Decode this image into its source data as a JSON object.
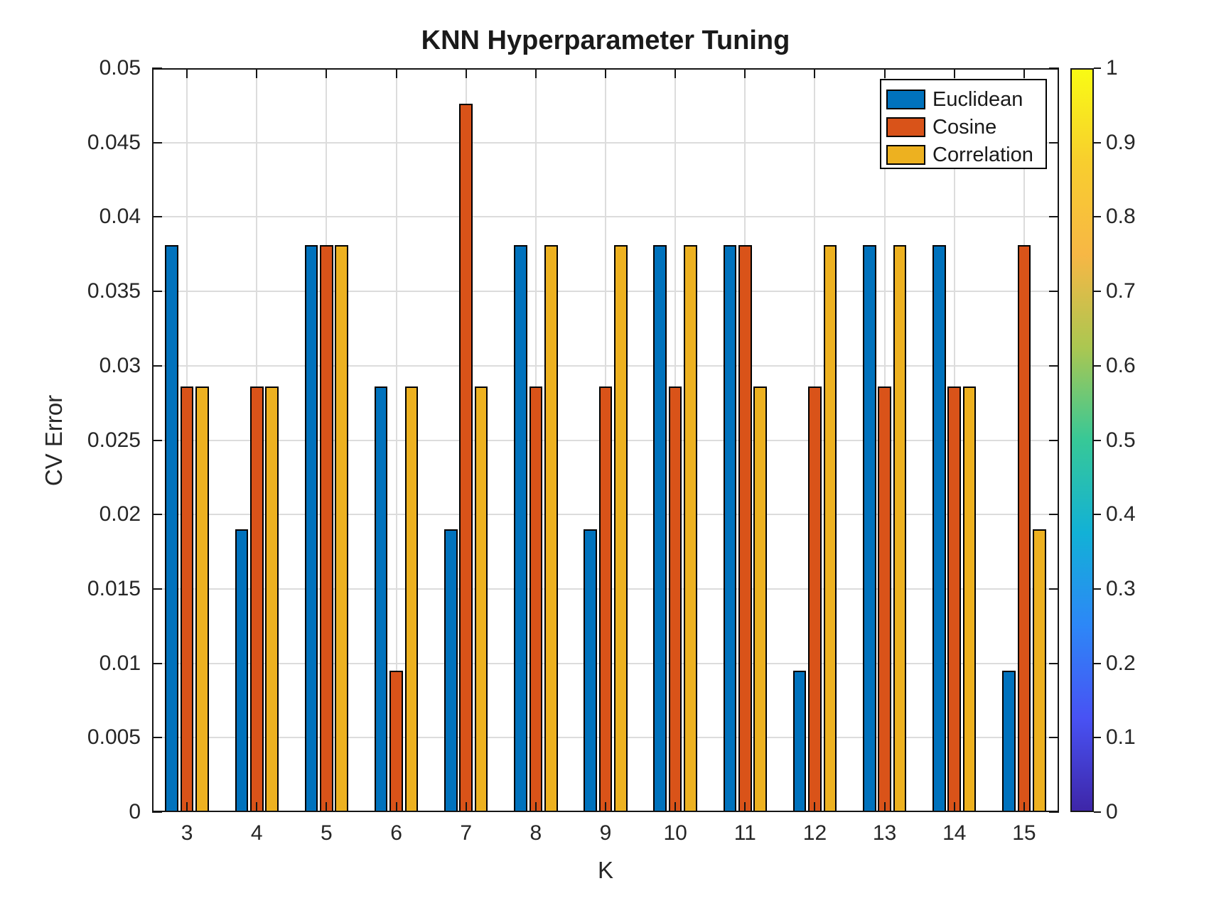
{
  "figure": {
    "title": "KNN Hyperparameter Tuning",
    "xlabel": "K",
    "ylabel": "CV Error"
  },
  "chart_data": {
    "type": "bar",
    "title": "KNN Hyperparameter Tuning",
    "xlabel": "K",
    "ylabel": "CV Error",
    "categories": [
      "3",
      "4",
      "5",
      "6",
      "7",
      "8",
      "9",
      "10",
      "11",
      "12",
      "13",
      "14",
      "15"
    ],
    "series": [
      {
        "name": "Euclidean",
        "color": "#0072BD",
        "values": [
          0.0381,
          0.019,
          0.0381,
          0.0286,
          0.019,
          0.0381,
          0.019,
          0.0381,
          0.0381,
          0.0095,
          0.0381,
          0.0381,
          0.0095
        ]
      },
      {
        "name": "Cosine",
        "color": "#D95319",
        "values": [
          0.0286,
          0.0286,
          0.0381,
          0.0095,
          0.0476,
          0.0286,
          0.0286,
          0.0286,
          0.0381,
          0.0286,
          0.0286,
          0.0286,
          0.0381
        ]
      },
      {
        "name": "Correlation",
        "color": "#EDB120",
        "values": [
          0.0286,
          0.0286,
          0.0381,
          0.0286,
          0.0286,
          0.0381,
          0.0381,
          0.0381,
          0.0286,
          0.0381,
          0.0381,
          0.0286,
          0.019
        ]
      }
    ],
    "ylim": [
      0,
      0.05
    ],
    "ytick_labels": [
      "0",
      "0.005",
      "0.01",
      "0.015",
      "0.02",
      "0.025",
      "0.03",
      "0.035",
      "0.04",
      "0.045",
      "0.05"
    ],
    "grid": true,
    "legend_position": "top-right-inside",
    "bar_edge_color": "#000000",
    "colorbar": {
      "min": 0,
      "max": 1,
      "tick_labels": [
        "0",
        "0.1",
        "0.2",
        "0.3",
        "0.4",
        "0.5",
        "0.6",
        "0.7",
        "0.8",
        "0.9",
        "1"
      ],
      "colormap": "parula",
      "gradient_stops": [
        "#3e26a8",
        "#4852f4",
        "#2d87f7",
        "#12b1d6",
        "#37c897",
        "#abc751",
        "#f7b745",
        "#f8ce2e",
        "#f9fb14"
      ]
    }
  }
}
